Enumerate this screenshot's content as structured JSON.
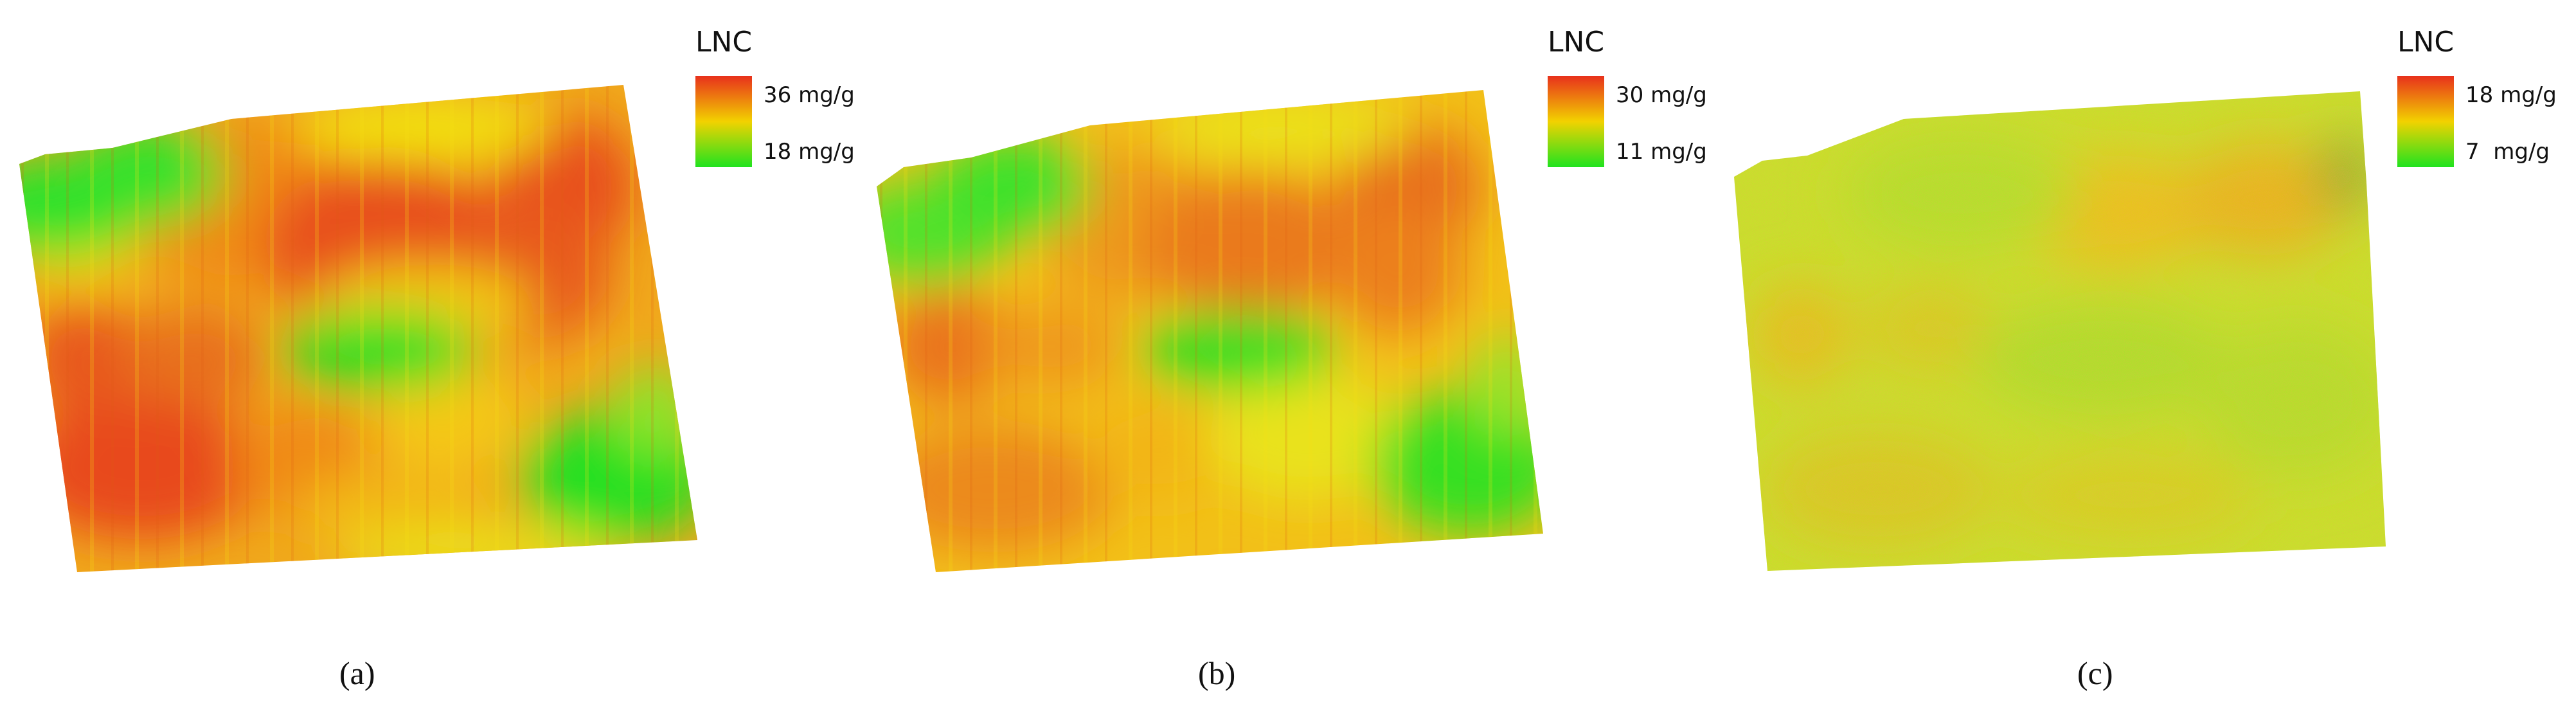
{
  "panels": [
    {
      "id": "a",
      "caption": "(a)",
      "legend": {
        "title": "LNC",
        "max_label": "36 mg/g",
        "min_label": "18 mg/g"
      }
    },
    {
      "id": "b",
      "caption": "(b)",
      "legend": {
        "title": "LNC",
        "max_label": "30 mg/g",
        "min_label": "11 mg/g"
      }
    },
    {
      "id": "c",
      "caption": "(c)",
      "legend": {
        "title": "LNC",
        "max_label": "18 mg/g",
        "min_label": "7  mg/g"
      }
    }
  ],
  "colors": {
    "high": "#e8301c",
    "mid": "#f2d200",
    "low": "#1fe31f",
    "background": "#ffffff"
  }
}
